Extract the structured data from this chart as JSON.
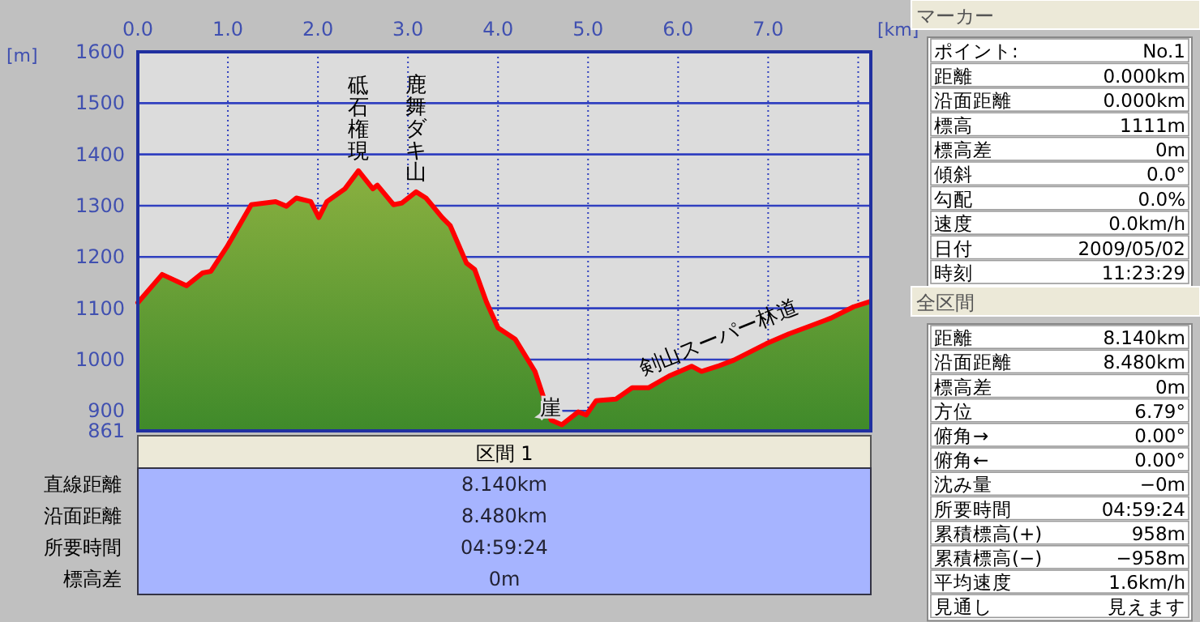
{
  "chart_data": [
    {
      "type": "area",
      "xlabel": "[km]",
      "ylabel": "[m]",
      "xlim": [
        0,
        8.14
      ],
      "ylim": [
        861,
        1600
      ],
      "xticks": [
        {
          "value": 0,
          "label": "0.0"
        },
        {
          "value": 1,
          "label": "1.0"
        },
        {
          "value": 2,
          "label": "2.0"
        },
        {
          "value": 3,
          "label": "3.0"
        },
        {
          "value": 4,
          "label": "4.0"
        },
        {
          "value": 5,
          "label": "5.0"
        },
        {
          "value": 6,
          "label": "6.0"
        },
        {
          "value": 7,
          "label": "7.0"
        },
        {
          "value": 8,
          "label": null
        }
      ],
      "yticks": [
        861,
        900,
        1000,
        1100,
        1200,
        1300,
        1400,
        1500,
        1600
      ],
      "grid": true,
      "series": [
        {
          "color": "#ff0000",
          "x": [
            0,
            0.27,
            0.54,
            0.72,
            0.81,
            0.99,
            1.26,
            1.53,
            1.65,
            1.76,
            1.92,
            2.01,
            2.1,
            2.3,
            2.45,
            2.61,
            2.66,
            2.84,
            2.93,
            3.09,
            3.2,
            3.38,
            3.47,
            3.65,
            3.74,
            3.87,
            4.0,
            4.19,
            4.41,
            4.59,
            4.71,
            4.89,
            4.98,
            5.09,
            5.31,
            5.49,
            5.67,
            5.9,
            6.15,
            6.26,
            6.44,
            6.62,
            6.98,
            7.23,
            7.46,
            7.7,
            7.95,
            8.13
          ],
          "values": [
            1111,
            1166,
            1144,
            1169,
            1172,
            1220,
            1302,
            1308,
            1299,
            1315,
            1308,
            1277,
            1308,
            1333,
            1368,
            1333,
            1340,
            1302,
            1305,
            1327,
            1315,
            1277,
            1261,
            1188,
            1176,
            1113,
            1062,
            1040,
            977,
            882,
            873,
            898,
            892,
            920,
            923,
            945,
            945,
            968,
            987,
            977,
            987,
            999,
            1031,
            1050,
            1065,
            1081,
            1103,
            1113
          ]
        }
      ],
      "annotations": [
        {
          "text": "砥石権現",
          "x": 2.45,
          "y": 1368
        },
        {
          "text": "鹿舞ダキ山",
          "x": 3.09,
          "y": 1327
        },
        {
          "text": "崖",
          "x": 4.71,
          "y": 873
        },
        {
          "text": "剣山スーパー林道",
          "x": 6.62,
          "y": 999
        }
      ]
    },
    {
      "type": "other",
      "title": "区間 1",
      "annotations": [
        "直線距離",
        "8.140km",
        "沿面距離",
        "8.480km",
        "所要時間",
        "04:59:24",
        "標高差",
        "0m"
      ]
    },
    {
      "type": "other",
      "title": "マーカー",
      "annotations": [
        "ポイント:",
        "No.1",
        "距離",
        "0.000km",
        "沿面距離",
        "0.000km",
        "標高",
        "1111m",
        "標高差",
        "0m",
        "傾斜",
        "0.0°",
        "勾配",
        "0.0%",
        "速度",
        "0.0km/h",
        "日付",
        "2009/05/02",
        "時刻",
        "11:23:29"
      ]
    },
    {
      "type": "other",
      "title": "全区間",
      "annotations": [
        "距離",
        "8.140km",
        "沿面距離",
        "8.480km",
        "標高差",
        "0m",
        "方位",
        "6.79°",
        "俯角→",
        "0.00°",
        "俯角←",
        "0.00°",
        "沈み量",
        "−0m",
        "所要時間",
        "04:59:24",
        "累積標高(+)",
        "958m",
        "累積標高(−)",
        "−958m",
        "平均速度",
        "1.6km/h",
        "見通し",
        "見えます"
      ]
    }
  ]
}
